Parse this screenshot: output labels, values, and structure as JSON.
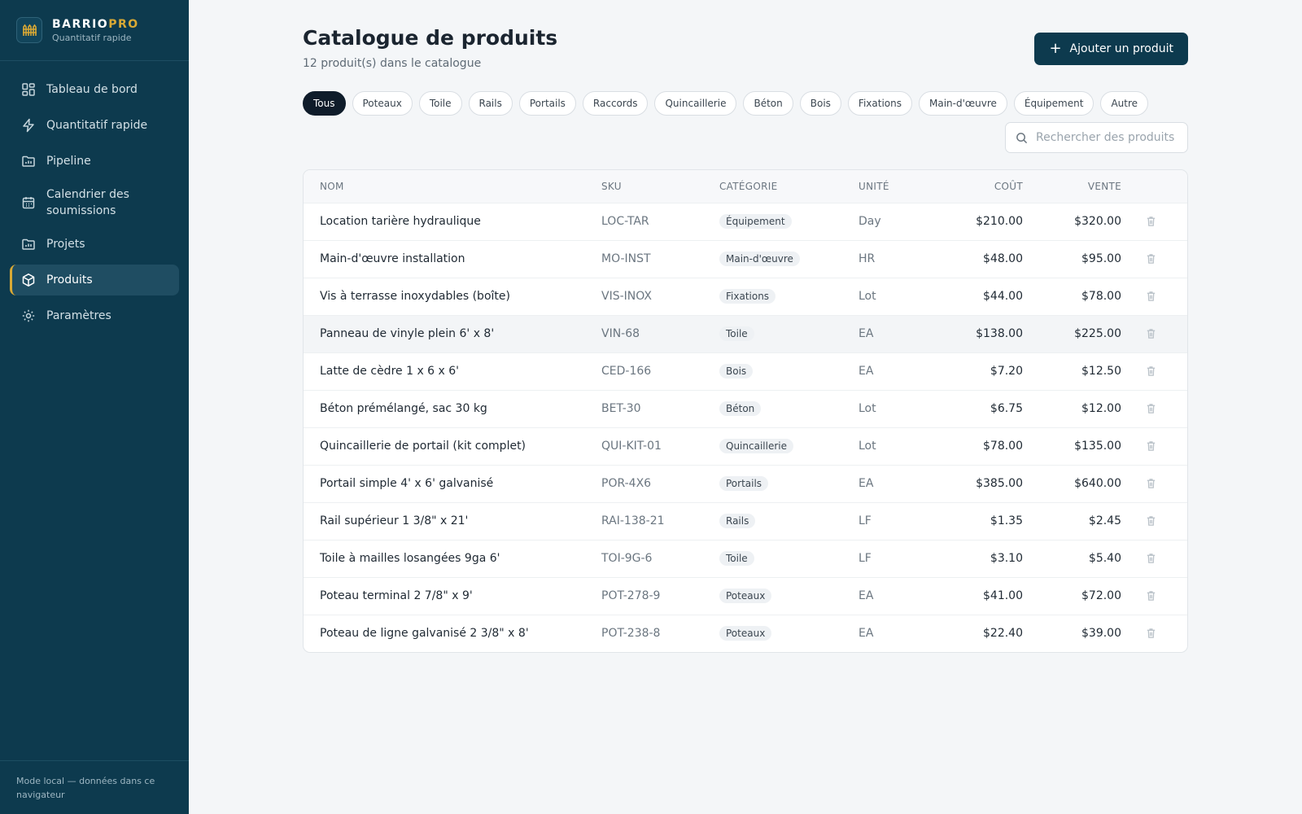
{
  "brand": {
    "name_part1": "BARRIO",
    "name_part2": "PRO",
    "subtitle": "Quantitatif rapide",
    "logo_icon": "fence-icon"
  },
  "sidebar": {
    "items": [
      {
        "label": "Tableau de bord",
        "icon": "dashboard-icon",
        "active": false
      },
      {
        "label": "Quantitatif rapide",
        "icon": "lightning-icon",
        "active": false
      },
      {
        "label": "Pipeline",
        "icon": "folder-chart-icon",
        "active": false
      },
      {
        "label": "Calendrier des soumissions",
        "icon": "calendar-icon",
        "active": false
      },
      {
        "label": "Projets",
        "icon": "folder-chart-icon",
        "active": false
      },
      {
        "label": "Produits",
        "icon": "package-icon",
        "active": true
      },
      {
        "label": "Paramètres",
        "icon": "gear-icon",
        "active": false
      }
    ],
    "footer": "Mode local — données dans ce navigateur"
  },
  "header": {
    "title": "Catalogue de produits",
    "subtitle": "12 produit(s) dans le catalogue",
    "add_button_label": "Ajouter un produit"
  },
  "filters": {
    "chips": [
      "Tous",
      "Poteaux",
      "Toile",
      "Rails",
      "Portails",
      "Raccords",
      "Quincaillerie",
      "Béton",
      "Bois",
      "Fixations",
      "Main-d'œuvre",
      "Équipement",
      "Autre"
    ],
    "active": "Tous"
  },
  "search": {
    "placeholder": "Rechercher des produits",
    "value": ""
  },
  "table": {
    "columns": {
      "name": "NOM",
      "sku": "SKU",
      "category": "CATÉGORIE",
      "unit": "UNITÉ",
      "cost": "COÛT",
      "sale": "VENTE"
    },
    "rows": [
      {
        "name": "Location tarière hydraulique",
        "sku": "LOC-TAR",
        "category": "Équipement",
        "unit": "Day",
        "cost": "$210.00",
        "sale": "$320.00"
      },
      {
        "name": "Main-d'œuvre installation",
        "sku": "MO-INST",
        "category": "Main-d'œuvre",
        "unit": "HR",
        "cost": "$48.00",
        "sale": "$95.00"
      },
      {
        "name": "Vis à terrasse inoxydables (boîte)",
        "sku": "VIS-INOX",
        "category": "Fixations",
        "unit": "Lot",
        "cost": "$44.00",
        "sale": "$78.00"
      },
      {
        "name": "Panneau de vinyle plein 6' x 8'",
        "sku": "VIN-68",
        "category": "Toile",
        "unit": "EA",
        "cost": "$138.00",
        "sale": "$225.00"
      },
      {
        "name": "Latte de cèdre 1 x 6 x 6'",
        "sku": "CED-166",
        "category": "Bois",
        "unit": "EA",
        "cost": "$7.20",
        "sale": "$12.50"
      },
      {
        "name": "Béton prémélangé, sac 30 kg",
        "sku": "BET-30",
        "category": "Béton",
        "unit": "Lot",
        "cost": "$6.75",
        "sale": "$12.00"
      },
      {
        "name": "Quincaillerie de portail (kit complet)",
        "sku": "QUI-KIT-01",
        "category": "Quincaillerie",
        "unit": "Lot",
        "cost": "$78.00",
        "sale": "$135.00"
      },
      {
        "name": "Portail simple 4' x 6' galvanisé",
        "sku": "POR-4X6",
        "category": "Portails",
        "unit": "EA",
        "cost": "$385.00",
        "sale": "$640.00"
      },
      {
        "name": "Rail supérieur 1 3/8\" x 21'",
        "sku": "RAI-138-21",
        "category": "Rails",
        "unit": "LF",
        "cost": "$1.35",
        "sale": "$2.45"
      },
      {
        "name": "Toile à mailles losangées 9ga 6'",
        "sku": "TOI-9G-6",
        "category": "Toile",
        "unit": "LF",
        "cost": "$3.10",
        "sale": "$5.40"
      },
      {
        "name": "Poteau terminal 2 7/8\" x 9'",
        "sku": "POT-278-9",
        "category": "Poteaux",
        "unit": "EA",
        "cost": "$41.00",
        "sale": "$72.00"
      },
      {
        "name": "Poteau de ligne galvanisé 2 3/8\" x 8'",
        "sku": "POT-238-8",
        "category": "Poteaux",
        "unit": "EA",
        "cost": "$22.40",
        "sale": "$39.00"
      }
    ]
  },
  "colors": {
    "sidebar_bg": "#0d3a4e",
    "accent": "#d9a935",
    "primary_button": "#0d3a4e",
    "active_chip": "#0f1c2a"
  }
}
